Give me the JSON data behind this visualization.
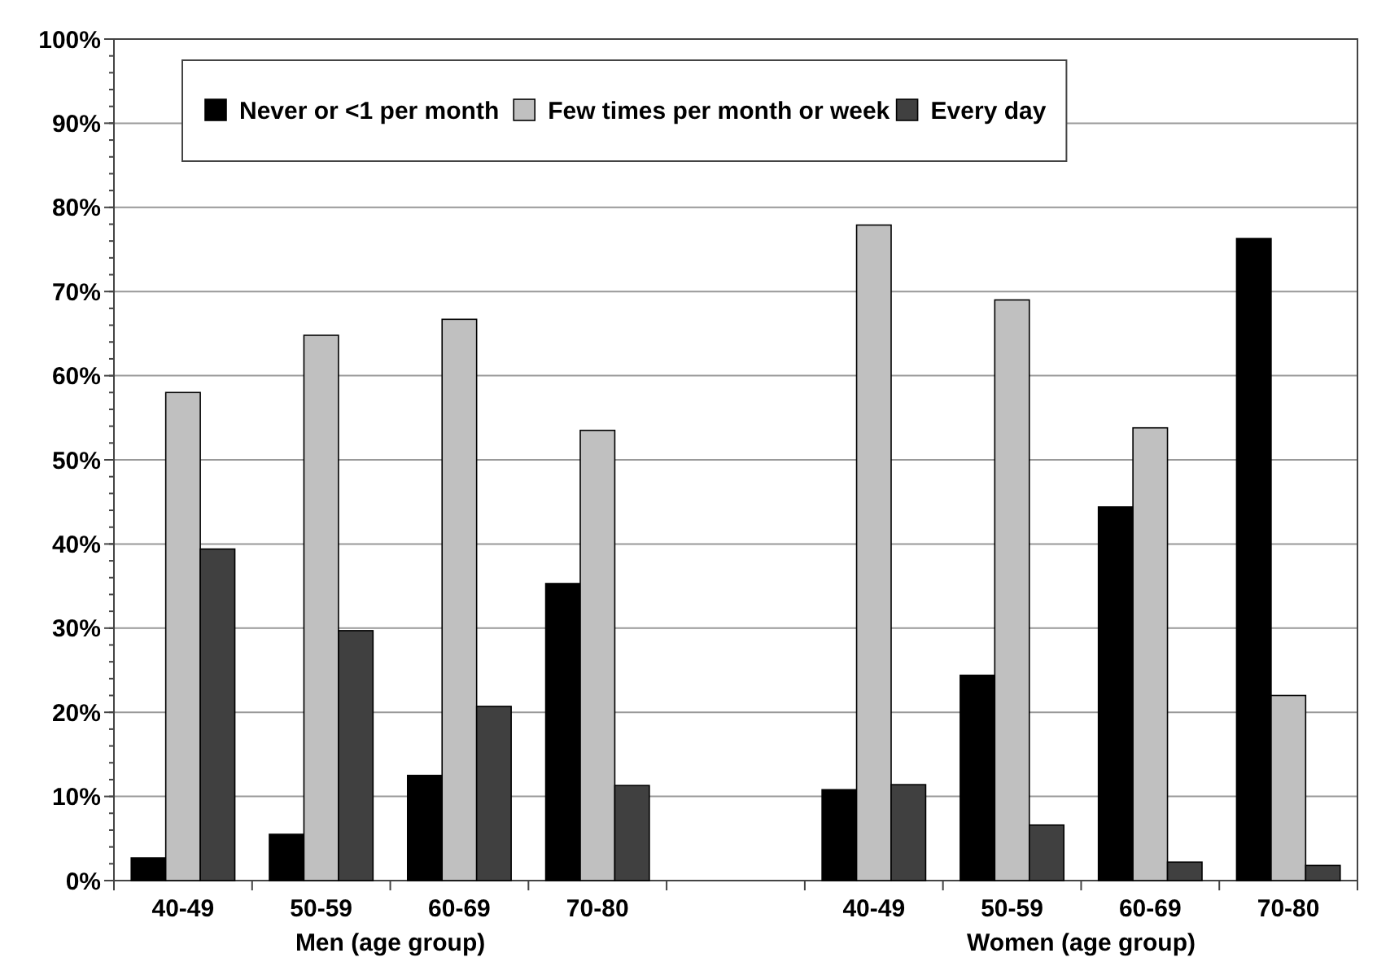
{
  "chart_data": {
    "type": "bar",
    "categories": [
      "40-49",
      "50-59",
      "60-69",
      "70-80",
      null,
      "40-49",
      "50-59",
      "60-69",
      "70-80"
    ],
    "series": [
      {
        "name": "Never or <1 per month",
        "color": "#000000",
        "values": [
          2.7,
          5.5,
          12.5,
          35.3,
          null,
          10.8,
          24.4,
          44.4,
          76.3
        ]
      },
      {
        "name": "Few times per month or week",
        "color": "#c0c0c0",
        "values": [
          58.0,
          64.8,
          66.7,
          53.5,
          null,
          77.9,
          69.0,
          53.8,
          22.0
        ]
      },
      {
        "name": "Every day",
        "color": "#404040",
        "values": [
          39.4,
          29.7,
          20.7,
          11.3,
          null,
          11.4,
          6.6,
          2.2,
          1.8
        ]
      }
    ],
    "ylim": [
      0,
      100
    ],
    "yticks": [
      {
        "value": 0,
        "label": "0%"
      },
      {
        "value": 10,
        "label": "10%"
      },
      {
        "value": 20,
        "label": "20%"
      },
      {
        "value": 30,
        "label": "30%"
      },
      {
        "value": 40,
        "label": "40%"
      },
      {
        "value": 50,
        "label": "50%"
      },
      {
        "value": 60,
        "label": "60%"
      },
      {
        "value": 70,
        "label": "70%"
      },
      {
        "value": 80,
        "label": "80%"
      },
      {
        "value": 90,
        "label": "90%"
      },
      {
        "value": 100,
        "label": "100%"
      }
    ],
    "annotations": [
      "Men (age group)",
      "Women (age group)"
    ],
    "grid": "y",
    "legend": "top"
  }
}
